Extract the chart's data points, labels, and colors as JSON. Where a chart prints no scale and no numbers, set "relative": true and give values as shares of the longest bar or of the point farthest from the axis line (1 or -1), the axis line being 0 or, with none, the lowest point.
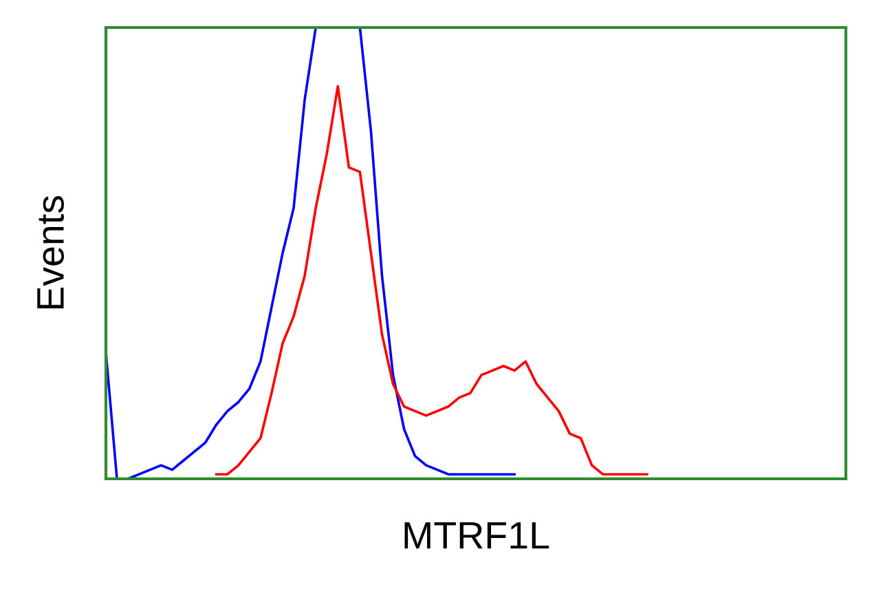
{
  "chart_data": {
    "type": "line",
    "relative": true,
    "xlabel": "MTRF1L",
    "ylabel": "Events",
    "categories": [
      null,
      null,
      null,
      null,
      null,
      null,
      null,
      null,
      null,
      null,
      null,
      null,
      null,
      null,
      null,
      null,
      null,
      null,
      null,
      null,
      null,
      null,
      null,
      null,
      null,
      null,
      null,
      null,
      null,
      null,
      null,
      null,
      null,
      null,
      null,
      null,
      null,
      null,
      null,
      null,
      null,
      null,
      null,
      null,
      null,
      null,
      null,
      null,
      null,
      null,
      null,
      null,
      null,
      null,
      null,
      null,
      null,
      null,
      null,
      null,
      null,
      null,
      null,
      null,
      null,
      null,
      null,
      null
    ],
    "series": [
      {
        "color": "#0000ff",
        "values": [
          0.28,
          0,
          0,
          0.01,
          0.02,
          0.03,
          0.02,
          0.04,
          0.06,
          0.08,
          0.12,
          0.15,
          0.17,
          0.2,
          0.26,
          0.38,
          0.5,
          0.6,
          0.84,
          1.0,
          null,
          null,
          null,
          1.0,
          0.77,
          0.45,
          0.23,
          0.11,
          0.05,
          0.03,
          0.02,
          0.01,
          0.01,
          0.01,
          0.01,
          0.01,
          0.01,
          0.01,
          null,
          null,
          null,
          null,
          null,
          null,
          null,
          null,
          null,
          null,
          null,
          null,
          null,
          null,
          null,
          null,
          null,
          null,
          null,
          null,
          null,
          null,
          null,
          null,
          null,
          null,
          null,
          null,
          null,
          null
        ]
      },
      {
        "color": "#ff0000",
        "values": [
          null,
          null,
          null,
          null,
          null,
          null,
          null,
          null,
          null,
          null,
          0.01,
          0.01,
          0.03,
          0.06,
          0.09,
          0.19,
          0.3,
          0.36,
          0.45,
          0.6,
          0.72,
          0.87,
          0.69,
          0.68,
          0.5,
          0.32,
          0.21,
          0.16,
          0.15,
          0.14,
          0.15,
          0.16,
          0.18,
          0.19,
          0.23,
          0.24,
          0.25,
          0.24,
          0.26,
          0.21,
          0.18,
          0.15,
          0.1,
          0.09,
          0.03,
          0.01,
          0.01,
          0.01,
          0.01,
          0.01,
          null,
          null,
          null,
          null,
          null,
          null,
          null,
          null,
          null,
          null,
          null,
          null,
          null,
          null,
          null,
          null,
          null,
          null
        ]
      }
    ]
  }
}
